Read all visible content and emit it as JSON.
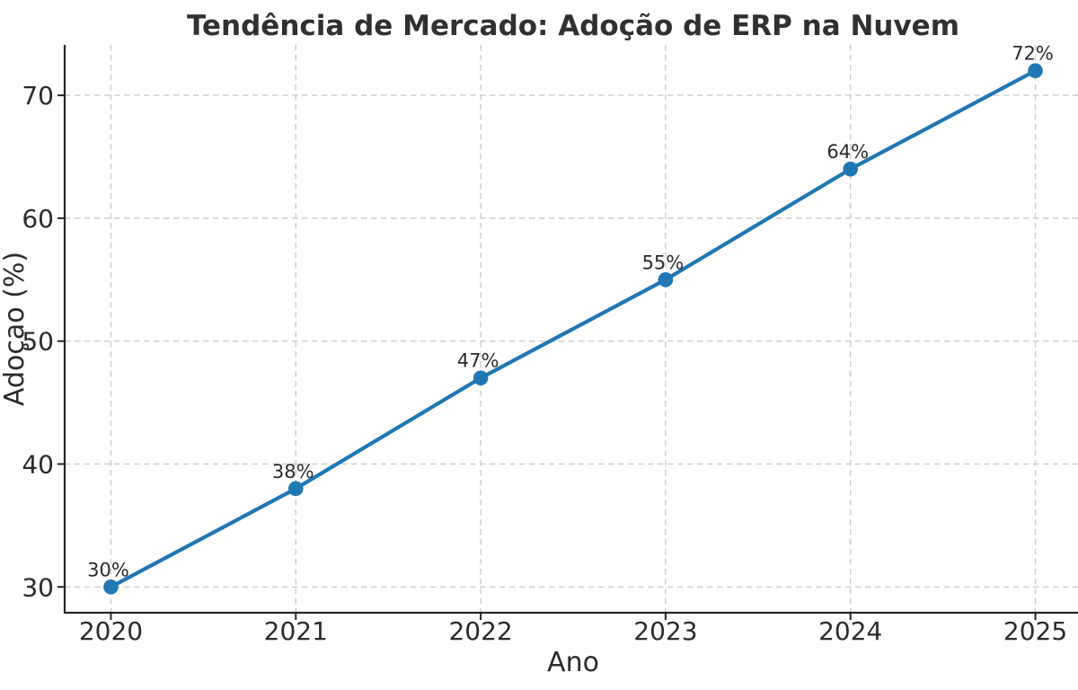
{
  "chart_data": {
    "type": "line",
    "title": "Tendência de Mercado: Adoção de ERP na Nuvem",
    "xlabel": "Ano",
    "ylabel": "Adoçao (%)",
    "x": [
      2020,
      2021,
      2022,
      2023,
      2024,
      2025
    ],
    "series": [
      {
        "name": "Adoção de ERP na Nuvem",
        "values": [
          30,
          38,
          47,
          55,
          64,
          72
        ],
        "color": "#1f77b4",
        "marker": "circle",
        "point_labels": [
          "30%",
          "38%",
          "47%",
          "55%",
          "64%",
          "72%"
        ]
      }
    ],
    "xticks": [
      2020,
      2021,
      2022,
      2023,
      2024,
      2025
    ],
    "xtick_labels": [
      "2020",
      "2021",
      "2022",
      "2023",
      "2024",
      "2025"
    ],
    "yticks": [
      30,
      40,
      50,
      60,
      70
    ],
    "ytick_labels": [
      "30",
      "40",
      "50",
      "60",
      "70"
    ],
    "xlim": [
      2019.75,
      2025.25
    ],
    "ylim": [
      27.9,
      74.1
    ],
    "grid": {
      "visible": true,
      "line_style": "dashed",
      "color": "#cccccc"
    },
    "legend_position": "none",
    "colors": {
      "line": "#1f77b4",
      "marker": "#1f77b4",
      "text": "#2b2b2b",
      "spine": "#262626",
      "grid": "#cccccc",
      "background": "#ffffff"
    }
  }
}
